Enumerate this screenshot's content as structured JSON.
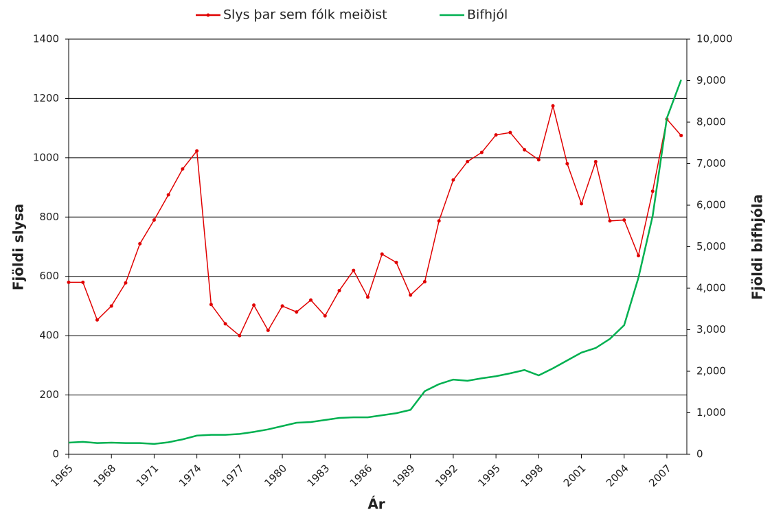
{
  "chart_data": {
    "type": "line",
    "x": [
      1965,
      1966,
      1967,
      1968,
      1969,
      1970,
      1971,
      1972,
      1973,
      1974,
      1975,
      1976,
      1977,
      1978,
      1979,
      1980,
      1981,
      1982,
      1983,
      1984,
      1985,
      1986,
      1987,
      1988,
      1989,
      1990,
      1991,
      1992,
      1993,
      1994,
      1995,
      1996,
      1997,
      1998,
      1999,
      2000,
      2001,
      2002,
      2003,
      2004,
      2005,
      2006,
      2007,
      2008
    ],
    "series": [
      {
        "name": "Slys þar sem fólk meiðist",
        "color": "#e00000",
        "markers": true,
        "values": [
          580,
          580,
          453,
          500,
          578,
          710,
          790,
          875,
          962,
          1023,
          505,
          440,
          400,
          503,
          418,
          500,
          480,
          520,
          467,
          552,
          620,
          530,
          675,
          647,
          537,
          582,
          787,
          925,
          987,
          1018,
          1077,
          1085,
          1027,
          993,
          1175,
          980,
          845,
          987,
          787,
          790,
          670,
          887,
          1130,
          1075
        ]
      },
      {
        "name": "Bifhjól",
        "color": "#00b050",
        "axis": "y2",
        "markers": false,
        "values": [
          280,
          300,
          270,
          280,
          270,
          270,
          250,
          290,
          360,
          450,
          470,
          470,
          490,
          540,
          600,
          680,
          760,
          777,
          826,
          876,
          890,
          890,
          940,
          990,
          1070,
          1520,
          1690,
          1800,
          1770,
          1830,
          1880,
          1950,
          2030,
          1900,
          2070,
          2260,
          2450,
          2560,
          2780,
          3110,
          4250,
          5740,
          8100,
          9020
        ]
      }
    ],
    "xlabel": "Ár",
    "ylabel": "Fjöldi slysa",
    "y2label": "Fjöldi bifhjóla",
    "xlim": [
      1965,
      2008.4
    ],
    "xticks": [
      1965,
      1968,
      1971,
      1974,
      1977,
      1980,
      1983,
      1986,
      1989,
      1992,
      1995,
      1998,
      2001,
      2004,
      2007
    ],
    "ylim": [
      0,
      1400
    ],
    "yticks": [
      0,
      200,
      400,
      600,
      800,
      1000,
      1200,
      1400
    ],
    "y2lim": [
      0,
      10000
    ],
    "y2ticks": [
      0,
      {
        "value": 1000,
        "label": "1,000"
      },
      {
        "value": 2000,
        "label": "2,000"
      },
      {
        "value": 3000,
        "label": "3,000"
      },
      {
        "value": 4000,
        "label": "4,000"
      },
      {
        "value": 5000,
        "label": "5,000"
      },
      {
        "value": 6000,
        "label": "6,000"
      },
      {
        "value": 7000,
        "label": "7,000"
      },
      {
        "value": 8000,
        "label": "8,000"
      },
      {
        "value": 9000,
        "label": "9,000"
      },
      {
        "value": 10000,
        "label": "10,000"
      }
    ],
    "grid": true,
    "legend": "top"
  }
}
